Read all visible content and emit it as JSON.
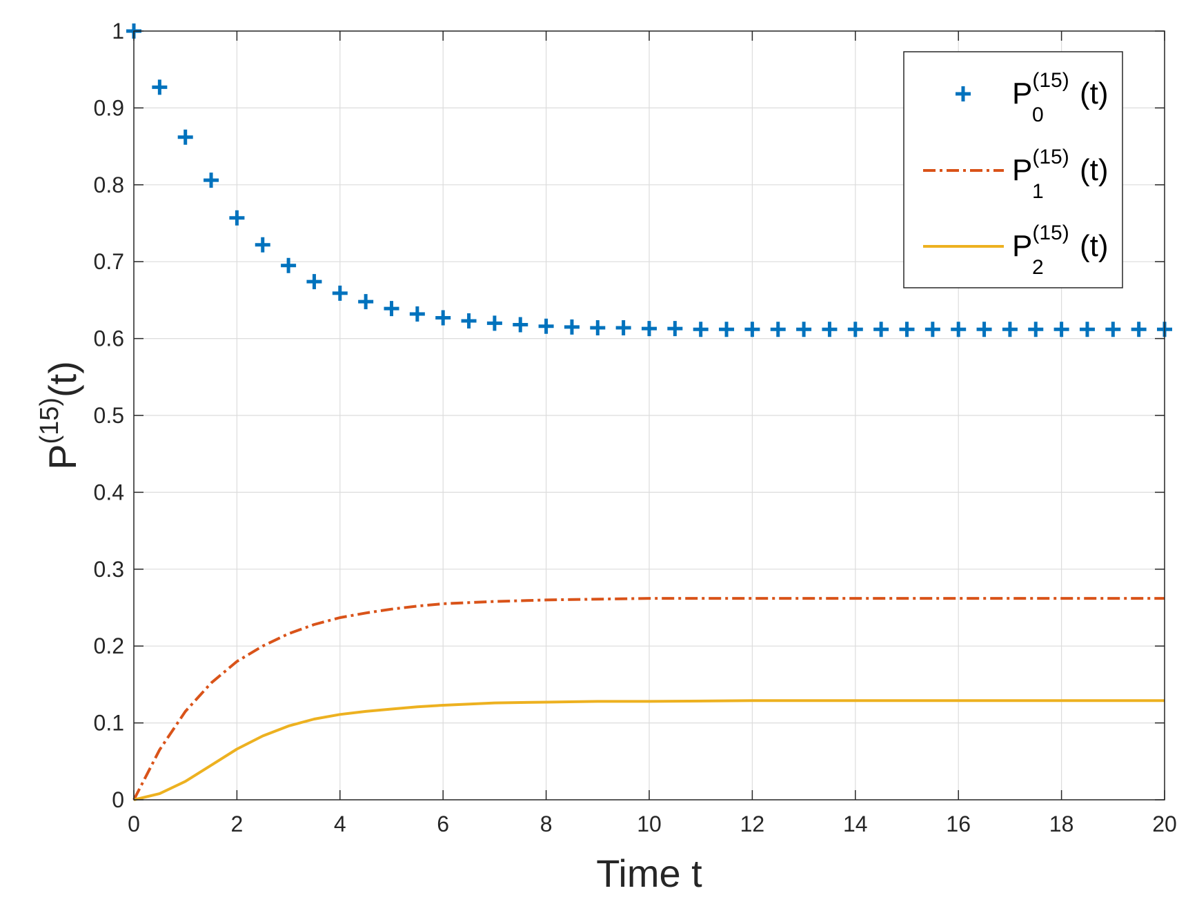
{
  "chart_data": {
    "type": "line",
    "xlabel": "Time t",
    "ylabel": {
      "base": "P",
      "sup": "(15)",
      "tail": "(t)"
    },
    "xlim": [
      0,
      20
    ],
    "ylim": [
      0,
      1
    ],
    "xticks": [
      0,
      2,
      4,
      6,
      8,
      10,
      12,
      14,
      16,
      18,
      20
    ],
    "yticks": [
      0,
      0.1,
      0.2,
      0.3,
      0.4,
      0.5,
      0.6,
      0.7,
      0.8,
      0.9,
      1
    ],
    "xtick_labels": [
      "0",
      "2",
      "4",
      "6",
      "8",
      "10",
      "12",
      "14",
      "16",
      "18",
      "20"
    ],
    "ytick_labels": [
      "0",
      "0.1",
      "0.2",
      "0.3",
      "0.4",
      "0.5",
      "0.6",
      "0.7",
      "0.8",
      "0.9",
      "1"
    ],
    "grid": true,
    "legend_position": "top-right",
    "series": [
      {
        "name": "P0(15)(t)",
        "legend": {
          "base": "P",
          "sup": "(15)",
          "sub": "0",
          "tail": "(t)"
        },
        "color": "#0072BD",
        "style": "markers",
        "marker": "plus",
        "x": [
          0,
          0.5,
          1,
          1.5,
          2,
          2.5,
          3,
          3.5,
          4,
          4.5,
          5,
          5.5,
          6,
          6.5,
          7,
          7.5,
          8,
          8.5,
          9,
          9.5,
          10,
          10.5,
          11,
          11.5,
          12,
          12.5,
          13,
          13.5,
          14,
          14.5,
          15,
          15.5,
          16,
          16.5,
          17,
          17.5,
          18,
          18.5,
          19,
          19.5,
          20
        ],
        "y": [
          1,
          0.927,
          0.862,
          0.806,
          0.757,
          0.722,
          0.695,
          0.674,
          0.659,
          0.648,
          0.639,
          0.632,
          0.627,
          0.623,
          0.62,
          0.618,
          0.616,
          0.615,
          0.614,
          0.614,
          0.613,
          0.613,
          0.612,
          0.612,
          0.612,
          0.612,
          0.612,
          0.612,
          0.612,
          0.612,
          0.612,
          0.612,
          0.612,
          0.612,
          0.612,
          0.612,
          0.612,
          0.612,
          0.612,
          0.612,
          0.612
        ]
      },
      {
        "name": "P1(15)(t)",
        "legend": {
          "base": "P",
          "sup": "(15)",
          "sub": "1",
          "tail": "(t)"
        },
        "color": "#D95319",
        "style": "dashdot",
        "x": [
          0,
          0.5,
          1,
          1.5,
          2,
          2.5,
          3,
          3.5,
          4,
          4.5,
          5,
          5.5,
          6,
          7,
          8,
          9,
          10,
          12,
          14,
          16,
          18,
          20
        ],
        "y": [
          0,
          0.065,
          0.115,
          0.152,
          0.18,
          0.2,
          0.216,
          0.228,
          0.237,
          0.243,
          0.248,
          0.252,
          0.255,
          0.258,
          0.26,
          0.261,
          0.262,
          0.262,
          0.262,
          0.262,
          0.262,
          0.262
        ]
      },
      {
        "name": "P2(15)(t)",
        "legend": {
          "base": "P",
          "sup": "(15)",
          "sub": "2",
          "tail": "(t)"
        },
        "color": "#EDB120",
        "style": "solid",
        "x": [
          0,
          0.5,
          1,
          1.5,
          2,
          2.5,
          3,
          3.5,
          4,
          4.5,
          5,
          5.5,
          6,
          7,
          8,
          9,
          10,
          12,
          14,
          16,
          18,
          20
        ],
        "y": [
          0,
          0.008,
          0.024,
          0.045,
          0.066,
          0.083,
          0.096,
          0.105,
          0.111,
          0.115,
          0.118,
          0.121,
          0.123,
          0.126,
          0.127,
          0.128,
          0.128,
          0.129,
          0.129,
          0.129,
          0.129,
          0.129
        ]
      }
    ]
  }
}
